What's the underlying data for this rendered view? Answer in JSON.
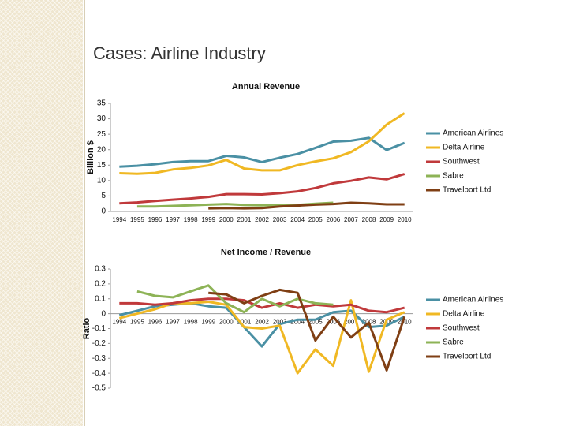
{
  "title": "Cases: Airline Industry",
  "chart_data": [
    {
      "type": "line",
      "title": "Annual Revenue",
      "y_label": "Billion $",
      "legend": "right",
      "grid": false,
      "categories": [
        "1994",
        "1995",
        "1996",
        "1997",
        "1998",
        "1999",
        "2000",
        "2001",
        "2002",
        "2003",
        "2004",
        "2005",
        "2006",
        "2007",
        "2008",
        "2009",
        "2010"
      ],
      "ylim": [
        0,
        35
      ],
      "yticks": [
        0,
        5,
        10,
        15,
        20,
        25,
        30,
        35
      ],
      "series": [
        {
          "name": "American Airlines",
          "color": "#4a90a4",
          "values": [
            14.5,
            14.8,
            15.3,
            16,
            16.3,
            16.3,
            18,
            17.5,
            16,
            17.4,
            18.6,
            20.6,
            22.6,
            22.9,
            23.8,
            19.9,
            22.2
          ]
        },
        {
          "name": "Delta Airline",
          "color": "#f0b823",
          "values": [
            12.4,
            12.2,
            12.5,
            13.6,
            14.1,
            14.9,
            16.7,
            13.9,
            13.3,
            13.3,
            15,
            16.2,
            17.2,
            19.2,
            22.7,
            28.1,
            31.8
          ]
        },
        {
          "name": "Southwest",
          "color": "#c0393b",
          "values": [
            2.6,
            2.9,
            3.4,
            3.8,
            4.2,
            4.7,
            5.6,
            5.6,
            5.5,
            5.9,
            6.5,
            7.6,
            9.1,
            9.9,
            11,
            10.4,
            12.1
          ]
        },
        {
          "name": "Sabre",
          "color": "#8db356",
          "values": [
            null,
            1.6,
            1.6,
            1.8,
            2,
            2.2,
            2.4,
            2.1,
            2,
            2,
            2.1,
            2.5,
            2.8,
            null,
            null,
            null,
            null
          ]
        },
        {
          "name": "Travelport Ltd",
          "color": "#7f3f14",
          "values": [
            null,
            null,
            null,
            null,
            null,
            1,
            1.1,
            1,
            1.1,
            1.6,
            1.9,
            2.2,
            2.4,
            2.8,
            2.6,
            2.3,
            2.3
          ]
        }
      ]
    },
    {
      "type": "line",
      "title": "Net Income / Revenue",
      "y_label": "Ratio",
      "legend": "right",
      "grid": false,
      "categories": [
        "1994",
        "1995",
        "1996",
        "1997",
        "1998",
        "1999",
        "2000",
        "2001",
        "2002",
        "2003",
        "2004",
        "2005",
        "2006",
        "2007",
        "2008",
        "2009",
        "2010"
      ],
      "ylim": [
        -0.5,
        0.3
      ],
      "yticks": [
        -0.5,
        -0.4,
        -0.3,
        -0.2,
        -0.1,
        0,
        0.1,
        0.2,
        0.3
      ],
      "series": [
        {
          "name": "American Airlines",
          "color": "#4a90a4",
          "values": [
            -0.01,
            0.02,
            0.05,
            0.06,
            0.07,
            0.05,
            0.04,
            -0.09,
            -0.22,
            -0.07,
            -0.04,
            -0.04,
            0.01,
            0.02,
            -0.09,
            -0.08,
            -0.02
          ]
        },
        {
          "name": "Delta Airline",
          "color": "#f0b823",
          "values": [
            -0.03,
            0,
            0.03,
            0.07,
            0.07,
            0.08,
            0.06,
            -0.09,
            -0.1,
            -0.08,
            -0.4,
            -0.24,
            -0.35,
            0.09,
            -0.39,
            -0.04,
            0.01
          ]
        },
        {
          "name": "Southwest",
          "color": "#c0393b",
          "values": [
            0.07,
            0.07,
            0.06,
            0.07,
            0.09,
            0.1,
            0.1,
            0.09,
            0.04,
            0.07,
            0.04,
            0.06,
            0.05,
            0.06,
            0.02,
            0.01,
            0.04
          ]
        },
        {
          "name": "Sabre",
          "color": "#8db356",
          "values": [
            null,
            0.15,
            0.12,
            0.11,
            0.15,
            0.19,
            0.07,
            0.01,
            0.1,
            0.05,
            0.1,
            0.07,
            0.06,
            null,
            null,
            null,
            null
          ]
        },
        {
          "name": "Travelport Ltd",
          "color": "#7f3f14",
          "values": [
            null,
            null,
            null,
            null,
            null,
            0.14,
            0.13,
            0.07,
            0.12,
            0.16,
            0.14,
            -0.18,
            -0.02,
            -0.16,
            -0.06,
            -0.38,
            -0.02
          ]
        }
      ]
    }
  ]
}
